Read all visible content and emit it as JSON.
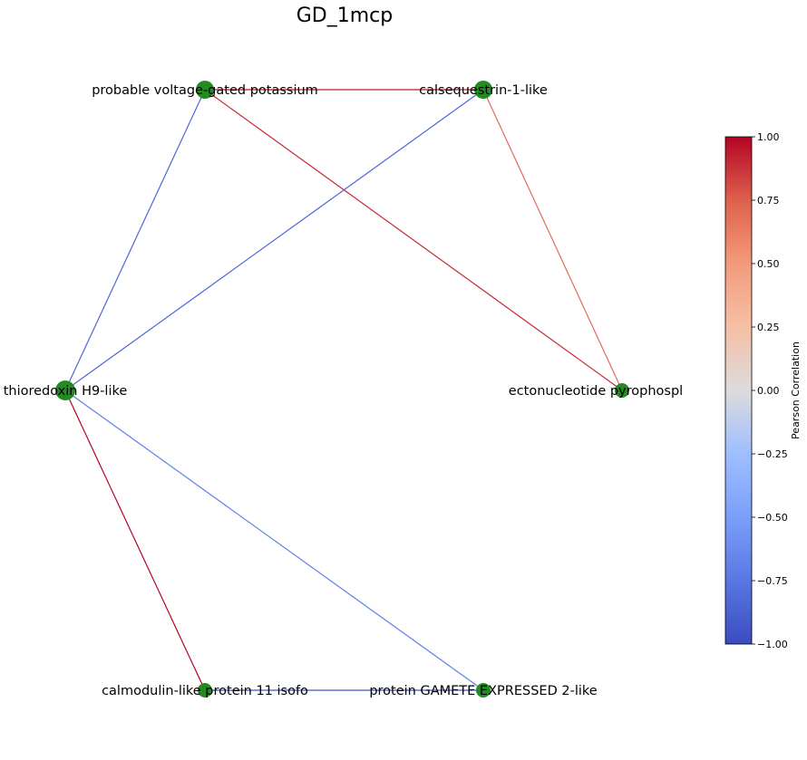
{
  "title": "GD_1mcp",
  "node_color": "#228b22",
  "nodes": [
    {
      "id": "kv",
      "label": "probable voltage-gated potassium"
    },
    {
      "id": "csq",
      "label": "calsequestrin-1-like"
    },
    {
      "id": "trx",
      "label": "thioredoxin H9-like"
    },
    {
      "id": "enpp",
      "label": "ectonucleotide pyrophospl"
    },
    {
      "id": "cml",
      "label": "calmodulin-like protein 11 isofo"
    },
    {
      "id": "gex",
      "label": "protein GAMETE EXPRESSED 2-like"
    }
  ],
  "edges": [
    {
      "source": "kv",
      "target": "csq",
      "correlation": 0.95
    },
    {
      "source": "kv",
      "target": "trx",
      "correlation": -0.85
    },
    {
      "source": "kv",
      "target": "enpp",
      "correlation": 0.9
    },
    {
      "source": "csq",
      "target": "trx",
      "correlation": -0.85
    },
    {
      "source": "csq",
      "target": "enpp",
      "correlation": 0.7
    },
    {
      "source": "trx",
      "target": "cml",
      "correlation": 1.0
    },
    {
      "source": "trx",
      "target": "gex",
      "correlation": -0.7
    },
    {
      "source": "cml",
      "target": "gex",
      "correlation": -0.95
    }
  ],
  "colorbar": {
    "label": "Pearson Correlation",
    "colormap": "coolwarm",
    "min": -1.0,
    "max": 1.0,
    "ticks": [
      "1.00",
      "0.75",
      "0.50",
      "0.25",
      "0.00",
      "−0.25",
      "−0.50",
      "−0.75",
      "−1.00"
    ]
  }
}
